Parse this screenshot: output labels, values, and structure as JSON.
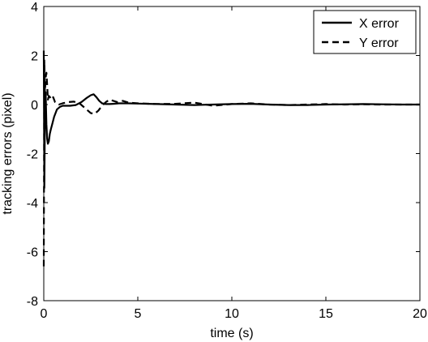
{
  "chart_data": {
    "type": "line",
    "title": "",
    "xlabel": "time (s)",
    "ylabel": "tracking errors (pixel)",
    "xlim": [
      0,
      20
    ],
    "ylim": [
      -8,
      4
    ],
    "x_ticks": [
      "0",
      "5",
      "10",
      "15",
      "20"
    ],
    "y_ticks": [
      "-8",
      "-6",
      "-4",
      "-2",
      "0",
      "2",
      "4"
    ],
    "grid": false,
    "legend_position": "top-right",
    "series": [
      {
        "name": "X error",
        "line_style": "solid",
        "color": "#000000",
        "x": [
          0,
          0.03,
          0.06,
          0.1,
          0.14,
          0.18,
          0.22,
          0.27,
          0.32,
          0.38,
          0.45,
          0.55,
          0.7,
          0.85,
          1.0,
          1.2,
          1.4,
          1.7,
          2.0,
          2.3,
          2.5,
          2.65,
          2.8,
          2.95,
          3.1,
          3.3,
          3.5,
          3.7,
          4.0,
          4.5,
          5.0,
          6.0,
          7.0,
          8.0,
          9.0,
          10.0,
          11.0,
          12.0,
          13.0,
          14.0,
          15.0,
          16.0,
          17.0,
          18.0,
          19.0,
          20.0
        ],
        "y": [
          2.2,
          -3.4,
          -0.6,
          0.5,
          -0.8,
          -1.4,
          -1.6,
          -1.5,
          -1.2,
          -1.0,
          -0.8,
          -0.5,
          -0.2,
          -0.1,
          -0.05,
          -0.05,
          -0.05,
          -0.02,
          0.1,
          0.28,
          0.38,
          0.42,
          0.3,
          0.15,
          0.05,
          0.02,
          0.02,
          0.03,
          0.05,
          0.05,
          0.04,
          0.02,
          0.0,
          -0.02,
          0.0,
          0.02,
          0.03,
          0.0,
          -0.02,
          -0.02,
          0.0,
          0.01,
          0.02,
          0.01,
          0.0,
          0.0
        ]
      },
      {
        "name": "Y error",
        "line_style": "dashed",
        "color": "#000000",
        "x": [
          0,
          0.03,
          0.06,
          0.1,
          0.14,
          0.18,
          0.22,
          0.27,
          0.33,
          0.4,
          0.5,
          0.6,
          0.8,
          1.0,
          1.3,
          1.6,
          1.9,
          2.2,
          2.5,
          2.7,
          2.9,
          3.1,
          3.3,
          3.5,
          3.7,
          3.9,
          4.2,
          4.5,
          5.0,
          6.0,
          7.0,
          8.0,
          9.0,
          10.0,
          11.0,
          12.0,
          13.0,
          14.0,
          15.0,
          16.0,
          17.0,
          18.0,
          19.0,
          20.0
        ],
        "y": [
          -6.6,
          1.8,
          0.5,
          1.1,
          1.3,
          0.8,
          0.2,
          0.35,
          0.3,
          0.2,
          0.3,
          0.1,
          0.0,
          0.05,
          0.1,
          0.12,
          0.05,
          -0.15,
          -0.35,
          -0.38,
          -0.25,
          -0.05,
          0.1,
          0.2,
          0.15,
          0.1,
          0.15,
          0.08,
          0.05,
          0.02,
          0.03,
          0.08,
          -0.05,
          0.02,
          0.05,
          0.0,
          -0.02,
          0.0,
          0.02,
          0.0,
          0.01,
          0.0,
          0.0,
          0.0
        ]
      }
    ]
  }
}
